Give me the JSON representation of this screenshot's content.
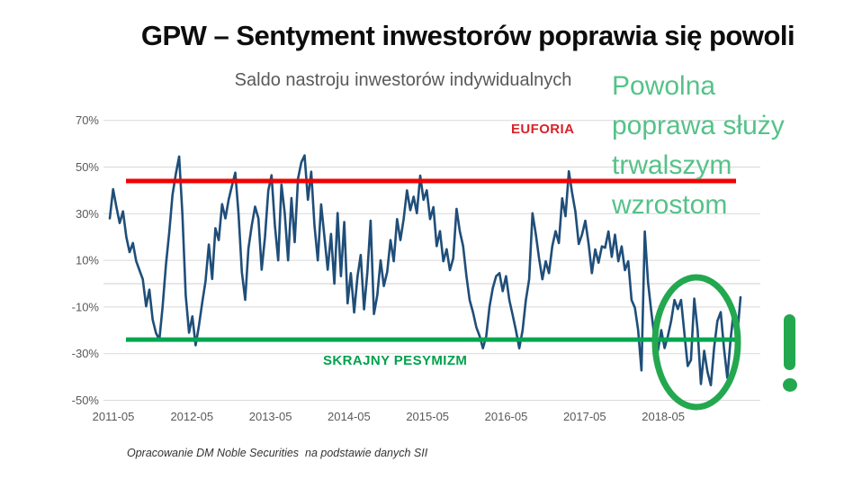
{
  "page": {
    "title": "GPW – Sentyment inwestorów poprawia się powoli",
    "footer": "Opracowanie DM Noble Securities  na podstawie danych SII"
  },
  "annotation": {
    "lines": [
      "Powolna",
      "poprawa służy",
      "trwalszym",
      "wzrostom"
    ],
    "text_color": "#55c289",
    "exclamation_color": "#23a84f",
    "circled_period": "2018-04 to 2019-04"
  },
  "chart_data": {
    "type": "line",
    "title": "Saldo nastroju inwestorów indywidualnych",
    "x_tick_labels": [
      "2011-05",
      "2012-05",
      "2013-05",
      "2014-05",
      "2015-05",
      "2016-05",
      "2017-05",
      "2018-05"
    ],
    "y_ticks": [
      70,
      50,
      30,
      10,
      -10,
      -30,
      -50
    ],
    "y_tick_labels": [
      "70%",
      "50%",
      "30%",
      "10%",
      "-10%",
      "-30%",
      "-50%"
    ],
    "ylim": [
      -58,
      76
    ],
    "grid": true,
    "line_color": "#1f4e79",
    "grid_color": "#d9d9d9",
    "axis_text_color": "#595959",
    "x_start": "2011-05",
    "x_end": "2019-04",
    "points_per_month": 2,
    "values": [
      28,
      40.5,
      33,
      26,
      31,
      20,
      13.5,
      17.4,
      9.6,
      5.8,
      1.9,
      -9.7,
      -2.6,
      -15.5,
      -21.2,
      -24,
      -10,
      8,
      22,
      38,
      47,
      54.5,
      30,
      -5,
      -21,
      -14,
      -26.4,
      -18,
      -8,
      1,
      16.8,
      2,
      23.8,
      18.7,
      34.1,
      28,
      36,
      42,
      47.6,
      30,
      5,
      -6.9,
      15,
      25,
      33,
      28,
      6,
      20,
      40,
      46.5,
      25,
      10,
      42.5,
      30,
      10,
      36.7,
      17.8,
      45,
      52,
      55,
      36,
      48,
      25,
      10,
      34,
      20,
      6,
      21.3,
      0,
      30.3,
      3.2,
      26.4,
      -8.4,
      4.5,
      -12.3,
      3,
      12.3,
      -11,
      5,
      27,
      -13,
      -5,
      10,
      -1,
      5,
      18.7,
      9.6,
      27.7,
      18.7,
      27.7,
      40,
      31.5,
      37.3,
      30.2,
      46.3,
      36,
      40,
      27.7,
      32.8,
      16.1,
      22.5,
      9.6,
      14.8,
      5.8,
      10.9,
      32.1,
      22.5,
      16.1,
      3.2,
      -7.1,
      -12.3,
      -18.7,
      -22.5,
      -27.7,
      -22.5,
      -9.7,
      -1.9,
      3.2,
      4.5,
      -3.2,
      3.2,
      -7.1,
      -13.5,
      -20,
      -27.7,
      -20,
      -7.1,
      1.9,
      30.2,
      21.2,
      10.9,
      1.9,
      9.6,
      4.5,
      16.1,
      22.5,
      17.4,
      36.6,
      28.9,
      48.2,
      39,
      30.8,
      17,
      21,
      27,
      17,
      4.5,
      14.7,
      9,
      16,
      15.4,
      22.4,
      11.5,
      21,
      9.6,
      16,
      5.8,
      9.6,
      -7,
      -10.3,
      -19.9,
      -37.2,
      22.4,
      0.6,
      -12.2,
      -23.7,
      -28.8,
      -19.9,
      -27.6,
      -22.4,
      -16,
      -7,
      -10.9,
      -7,
      -21.2,
      -35.3,
      -32.7,
      -6.4,
      -19.9,
      -43,
      -28.8,
      -37.8,
      -43.5,
      -27.6,
      -16,
      -12.2,
      -27.6,
      -40.4,
      -23.7,
      -10.9,
      -22.4,
      -5.8
    ],
    "reference_lines": [
      {
        "label": "EUFORIA",
        "value": 44,
        "color": "#f20000"
      },
      {
        "label": "SKRAJNY PESYMIZM",
        "value": -24,
        "color": "#00a651"
      }
    ]
  }
}
